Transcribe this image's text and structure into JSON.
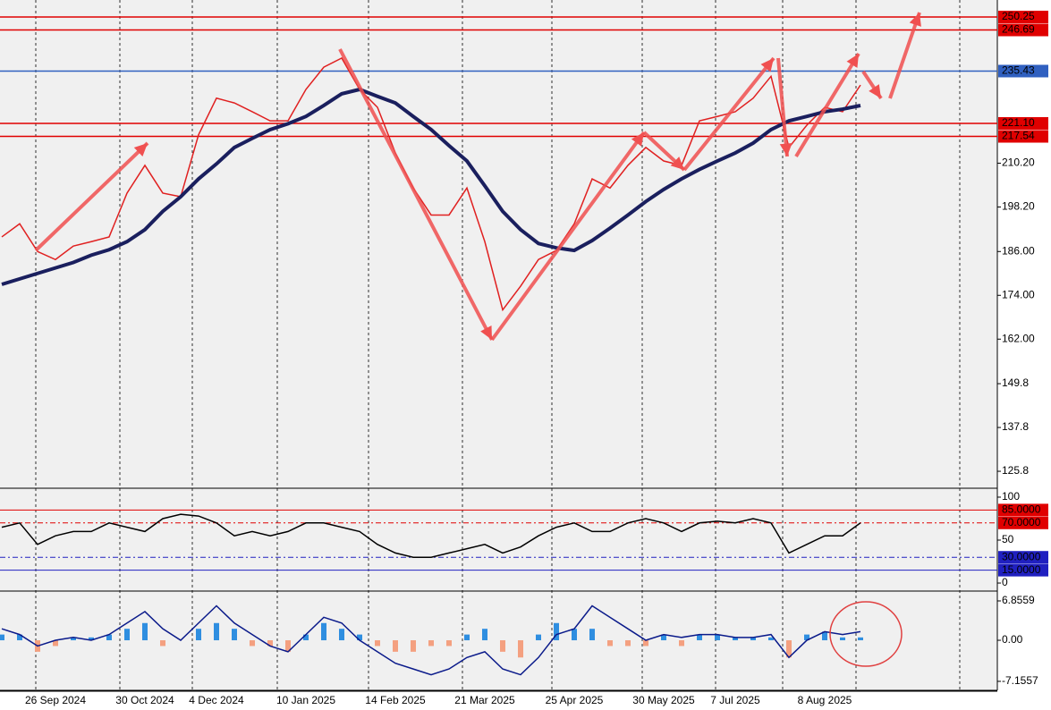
{
  "chart_data": [
    {
      "type": "line",
      "categories": [
        null,
        null,
        null,
        "26 Sep 2024",
        null,
        null,
        null,
        null,
        "30 Oct 2024",
        null,
        null,
        null,
        "4 Dec 2024",
        null,
        null,
        null,
        null,
        "10 Jan 2025",
        null,
        null,
        null,
        null,
        "14 Feb 2025",
        null,
        null,
        null,
        null,
        "21 Mar 2025",
        null,
        null,
        null,
        null,
        "25 Apr 2025",
        null,
        null,
        null,
        null,
        "30 May 2025",
        null,
        null,
        null,
        "7 Jul 2025",
        null,
        null,
        null,
        null,
        "8 Aug 2025",
        null,
        null
      ],
      "series": [
        {
          "color": "#e02020",
          "values": [
            190,
            193.6,
            186,
            183.8,
            187.5,
            188.7,
            190,
            202,
            209.6,
            202,
            201,
            218,
            228,
            226.7,
            224.3,
            221.8,
            221.8,
            230.4,
            236.5,
            239,
            230.4,
            225.5,
            213,
            203.4,
            196,
            196,
            203.4,
            188.7,
            170,
            176.5,
            183.8,
            186.3,
            193.6,
            205.9,
            203.4,
            209.6,
            214.5,
            210.8,
            209.6,
            221.8,
            223,
            224.3,
            228,
            234,
            214.5,
            220.6,
            225.5,
            224.3,
            231.6
          ]
        },
        {
          "color": "#1a1f5e",
          "values": [
            177,
            178.5,
            180,
            181.5,
            183,
            185,
            186.5,
            188.7,
            192,
            197,
            201,
            205.9,
            210,
            214.5,
            217,
            219.4,
            221,
            223,
            226,
            229.2,
            230.4,
            228.5,
            226.7,
            223,
            219.4,
            215,
            210.8,
            204,
            197,
            192,
            188.2,
            187,
            186.3,
            189,
            192.4,
            196,
            199.7,
            203,
            205.9,
            208.5,
            210.8,
            213,
            215.7,
            219.4,
            221.8,
            223,
            224.3,
            225,
            226
          ]
        }
      ],
      "ylim": [
        121.4,
        254.9
      ],
      "yticks": [
        125.8,
        137.8,
        149.8,
        {
          "value": 162,
          "label": "162.00"
        },
        {
          "value": 174,
          "label": "174.00"
        },
        {
          "value": 186,
          "label": "186.00"
        },
        {
          "value": 198.2,
          "label": "198.20"
        },
        {
          "value": 210.2,
          "label": "210.20"
        }
      ],
      "levels": [
        {
          "value": 250.25,
          "color": "#e00000"
        },
        {
          "value": 246.69,
          "color": "#e00000"
        },
        {
          "value": 235.43,
          "color": "#3060c0"
        },
        {
          "value": 221.1,
          "label": "221.10",
          "color": "#e00000"
        },
        {
          "value": 217.54,
          "color": "#e00000"
        }
      ]
    },
    {
      "type": "line",
      "series": [
        {
          "color": "#000000",
          "values": [
            65,
            70,
            45,
            55,
            60,
            60,
            70,
            65,
            60,
            75,
            80,
            78,
            70,
            55,
            60,
            55,
            60,
            70,
            70,
            65,
            60,
            45,
            35,
            30,
            30,
            35,
            40,
            45,
            35,
            42,
            55,
            65,
            70,
            60,
            60,
            70,
            75,
            70,
            60,
            70,
            72,
            70,
            75,
            70,
            35,
            45,
            55,
            55,
            70
          ]
        }
      ],
      "ylim": [
        -8.3,
        108.3
      ],
      "yticks": [
        0,
        50,
        100
      ],
      "levels": [
        {
          "value": 85,
          "label": "85.0000",
          "color": "#e00000"
        },
        {
          "value": 70,
          "label": "70.0000",
          "color": "#e00000"
        },
        {
          "value": 30,
          "label": "30.0000",
          "color": "#2020c0"
        },
        {
          "value": 15,
          "label": "15.0000",
          "color": "#2020c0"
        }
      ]
    },
    {
      "type": "bar",
      "values": [
        1,
        1,
        -2,
        -1,
        0.5,
        0.5,
        1,
        2,
        3,
        -1,
        0,
        2,
        3,
        2,
        -1,
        -1,
        -2,
        1,
        3,
        2,
        1,
        -1,
        -2,
        -2,
        -1,
        -1,
        1,
        2,
        -2,
        -3,
        1,
        3,
        2,
        2,
        -1,
        -1,
        -1,
        1,
        -1,
        1,
        1,
        0.5,
        0.5,
        0.5,
        -3,
        1,
        1.5,
        0.5,
        0.5
      ],
      "positive_color": "#2f8ee0",
      "negative_color": "#f4a080",
      "series": [
        {
          "color": "#0a1a8a",
          "values": [
            2,
            1,
            -1,
            0,
            0.5,
            0,
            1,
            3,
            5,
            2,
            0,
            3,
            6,
            3,
            1,
            -1,
            -2,
            1,
            4,
            3,
            0,
            -2,
            -4,
            -5,
            -6,
            -5,
            -3,
            -2,
            -5,
            -6,
            -3,
            1,
            2,
            6,
            4,
            2,
            0,
            1,
            0.5,
            1,
            1,
            0.5,
            0.5,
            1,
            -3,
            0,
            1.5,
            1,
            1.5
          ]
        }
      ],
      "ylim": [
        -8.72,
        8.26
      ],
      "yticks": [
        6.8559,
        {
          "value": 0,
          "label": "0.00"
        },
        -7.1557
      ]
    }
  ]
}
